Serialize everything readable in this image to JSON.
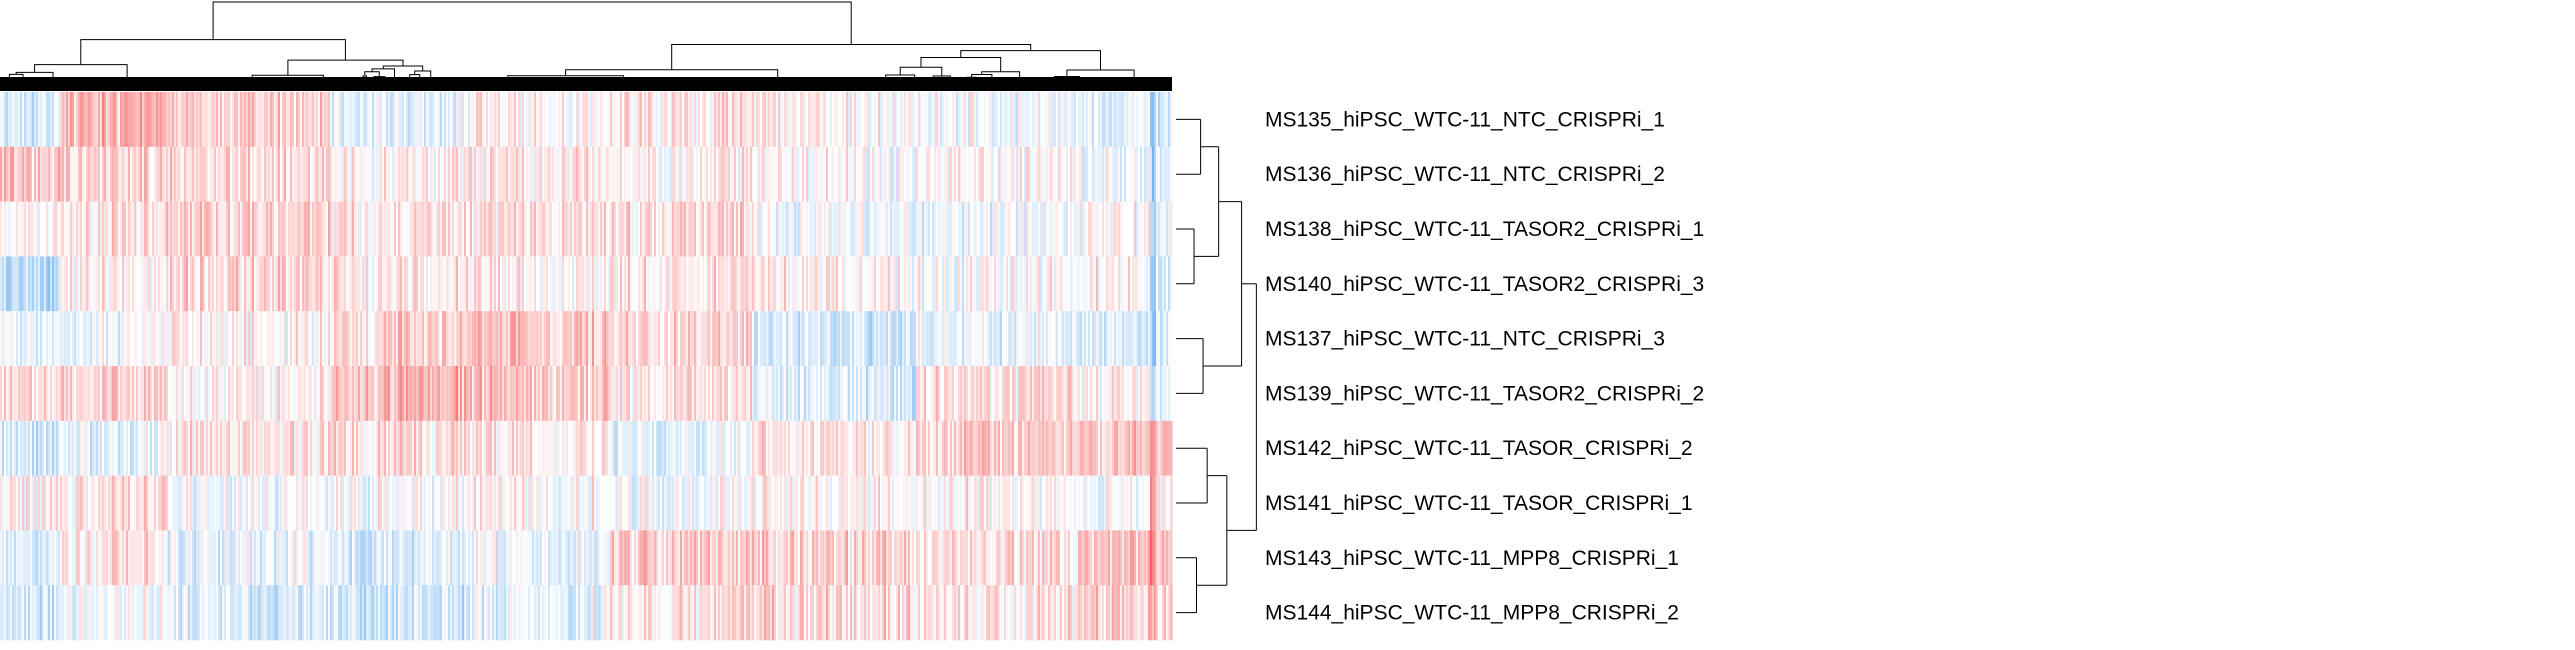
{
  "chart_data": {
    "type": "heatmap",
    "title": "",
    "xlabel": "",
    "ylabel": "",
    "legend": "none",
    "row_clustering": "hierarchical",
    "column_clustering": "hierarchical",
    "colors": {
      "low": "#2f8fe6",
      "mid": "#ffffff",
      "high": "#ee2a2a",
      "line": "#000000"
    },
    "rows": [
      "MS135_hiPSC_WTC-11_NTC_CRISPRi_1",
      "MS136_hiPSC_WTC-11_NTC_CRISPRi_2",
      "MS138_hiPSC_WTC-11_TASOR2_CRISPRi_1",
      "MS140_hiPSC_WTC-11_TASOR2_CRISPRi_3",
      "MS137_hiPSC_WTC-11_NTC_CRISPRi_3",
      "MS139_hiPSC_WTC-11_TASOR2_CRISPRi_2",
      "MS142_hiPSC_WTC-11_TASOR_CRISPRi_2",
      "MS141_hiPSC_WTC-11_TASOR_CRISPRi_1",
      "MS143_hiPSC_WTC-11_MPP8_CRISPRi_1",
      "MS144_hiPSC_WTC-11_MPP8_CRISPRi_2"
    ],
    "row_dendrogram": [
      {
        "a": 0,
        "b": 1,
        "h": 0.3
      },
      {
        "a": 2,
        "b": 3,
        "h": 0.22
      },
      {
        "a": 4,
        "b": 5,
        "h": 0.33
      },
      {
        "a": 10,
        "b": 11,
        "h": 0.52
      },
      {
        "a": 12,
        "b": 13,
        "h": 0.8
      },
      {
        "a": 6,
        "b": 7,
        "h": 0.38
      },
      {
        "a": 8,
        "b": 9,
        "h": 0.25
      },
      {
        "a": 15,
        "b": 16,
        "h": 0.62
      },
      {
        "a": 14,
        "b": 17,
        "h": 0.98
      }
    ],
    "column_profile": {
      "notes": "columns ordered by clustering; values are z-scores",
      "segments": [
        {
          "from": 0.0,
          "to": 0.05,
          "pattern": [
            -0.3,
            0.5,
            0.1,
            -0.6,
            -0.2,
            0.3,
            -0.4,
            0.1,
            -0.3,
            -0.4
          ]
        },
        {
          "from": 0.05,
          "to": 0.14,
          "pattern": [
            0.6,
            0.3,
            0.2,
            0.1,
            -0.1,
            0.3,
            -0.2,
            0.2,
            0.2,
            -0.1
          ]
        },
        {
          "from": 0.14,
          "to": 0.28,
          "pattern": [
            0.4,
            0.3,
            0.4,
            0.3,
            0.1,
            0.1,
            0.2,
            -0.1,
            -0.2,
            -0.3
          ]
        },
        {
          "from": 0.28,
          "to": 0.4,
          "pattern": [
            -0.2,
            0.1,
            0.2,
            0.2,
            0.4,
            0.6,
            0.3,
            0.0,
            -0.3,
            -0.4
          ]
        },
        {
          "from": 0.4,
          "to": 0.52,
          "pattern": [
            0.1,
            0.2,
            0.3,
            0.1,
            0.5,
            0.5,
            0.2,
            0.1,
            -0.1,
            -0.2
          ]
        },
        {
          "from": 0.52,
          "to": 0.64,
          "pattern": [
            0.2,
            0.1,
            0.3,
            0.2,
            0.3,
            0.2,
            -0.2,
            -0.1,
            0.4,
            0.2
          ]
        },
        {
          "from": 0.64,
          "to": 0.78,
          "pattern": [
            0.1,
            0.0,
            -0.1,
            0.1,
            -0.4,
            -0.3,
            0.2,
            0.1,
            0.4,
            0.3
          ]
        },
        {
          "from": 0.78,
          "to": 0.92,
          "pattern": [
            -0.1,
            0.1,
            -0.1,
            0.0,
            -0.2,
            0.3,
            0.4,
            0.1,
            0.3,
            0.2
          ]
        },
        {
          "from": 0.92,
          "to": 0.98,
          "pattern": [
            -0.2,
            -0.1,
            0.1,
            0.1,
            -0.3,
            0.1,
            0.5,
            0.0,
            0.5,
            0.4
          ]
        },
        {
          "from": 0.98,
          "to": 0.985,
          "pattern": [
            -0.9,
            -0.8,
            -0.7,
            -0.8,
            -0.9,
            -0.7,
            0.9,
            0.7,
            1.0,
            0.9
          ]
        },
        {
          "from": 0.985,
          "to": 1.0,
          "pattern": [
            -0.3,
            -0.2,
            -0.1,
            -0.2,
            -0.2,
            -0.1,
            0.6,
            0.2,
            0.5,
            0.4
          ]
        }
      ]
    }
  }
}
